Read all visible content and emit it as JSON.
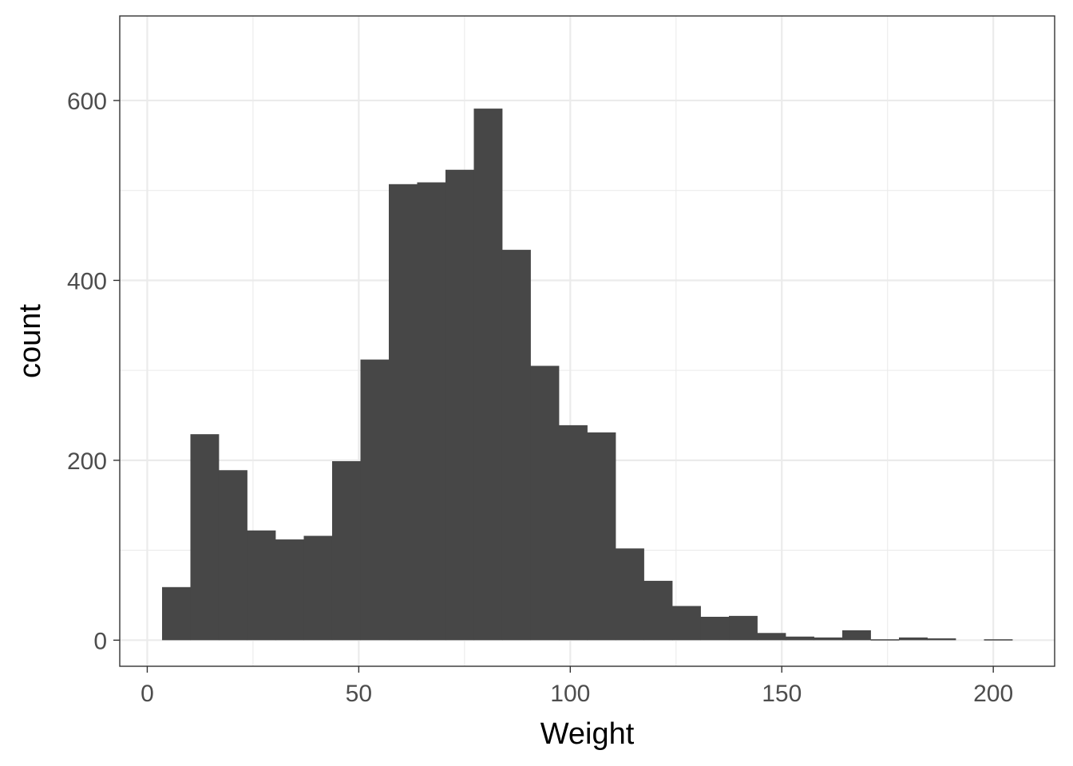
{
  "chart_data": {
    "type": "bar",
    "subtype": "histogram",
    "title": "",
    "xlabel": "Weight",
    "ylabel": "count",
    "xlim": [
      -6.5,
      214.5
    ],
    "ylim": [
      -29,
      694
    ],
    "x_ticks": [
      0,
      50,
      100,
      150,
      200
    ],
    "x_minor_ticks": [
      25,
      75,
      125,
      175
    ],
    "y_ticks": [
      0,
      200,
      400,
      600
    ],
    "y_minor_ticks": [
      100,
      300,
      500
    ],
    "grid": true,
    "bar_color": "#474747",
    "bin_width": 6.7,
    "bins": [
      {
        "x0": 3.5,
        "x1": 10.2,
        "count": 59
      },
      {
        "x0": 10.2,
        "x1": 16.9,
        "count": 229
      },
      {
        "x0": 16.9,
        "x1": 23.6,
        "count": 189
      },
      {
        "x0": 23.6,
        "x1": 30.3,
        "count": 122
      },
      {
        "x0": 30.3,
        "x1": 37.0,
        "count": 112
      },
      {
        "x0": 37.0,
        "x1": 43.7,
        "count": 116
      },
      {
        "x0": 43.7,
        "x1": 50.4,
        "count": 199
      },
      {
        "x0": 50.4,
        "x1": 57.1,
        "count": 312
      },
      {
        "x0": 57.1,
        "x1": 63.8,
        "count": 507
      },
      {
        "x0": 63.8,
        "x1": 70.5,
        "count": 509
      },
      {
        "x0": 70.5,
        "x1": 77.2,
        "count": 523
      },
      {
        "x0": 77.2,
        "x1": 83.9,
        "count": 591
      },
      {
        "x0": 83.9,
        "x1": 90.6,
        "count": 434
      },
      {
        "x0": 90.6,
        "x1": 97.3,
        "count": 305
      },
      {
        "x0": 97.3,
        "x1": 104.0,
        "count": 239
      },
      {
        "x0": 104.0,
        "x1": 110.7,
        "count": 231
      },
      {
        "x0": 110.7,
        "x1": 117.4,
        "count": 102
      },
      {
        "x0": 117.4,
        "x1": 124.1,
        "count": 66
      },
      {
        "x0": 124.1,
        "x1": 130.8,
        "count": 38
      },
      {
        "x0": 130.8,
        "x1": 137.5,
        "count": 26
      },
      {
        "x0": 137.5,
        "x1": 144.2,
        "count": 27
      },
      {
        "x0": 144.2,
        "x1": 150.9,
        "count": 8
      },
      {
        "x0": 150.9,
        "x1": 157.6,
        "count": 4
      },
      {
        "x0": 157.6,
        "x1": 164.3,
        "count": 3
      },
      {
        "x0": 164.3,
        "x1": 171.0,
        "count": 11
      },
      {
        "x0": 171.0,
        "x1": 177.7,
        "count": 1
      },
      {
        "x0": 177.7,
        "x1": 184.4,
        "count": 3
      },
      {
        "x0": 184.4,
        "x1": 191.1,
        "count": 2
      },
      {
        "x0": 191.1,
        "x1": 197.8,
        "count": 0
      },
      {
        "x0": 197.8,
        "x1": 204.5,
        "count": 1
      }
    ]
  }
}
